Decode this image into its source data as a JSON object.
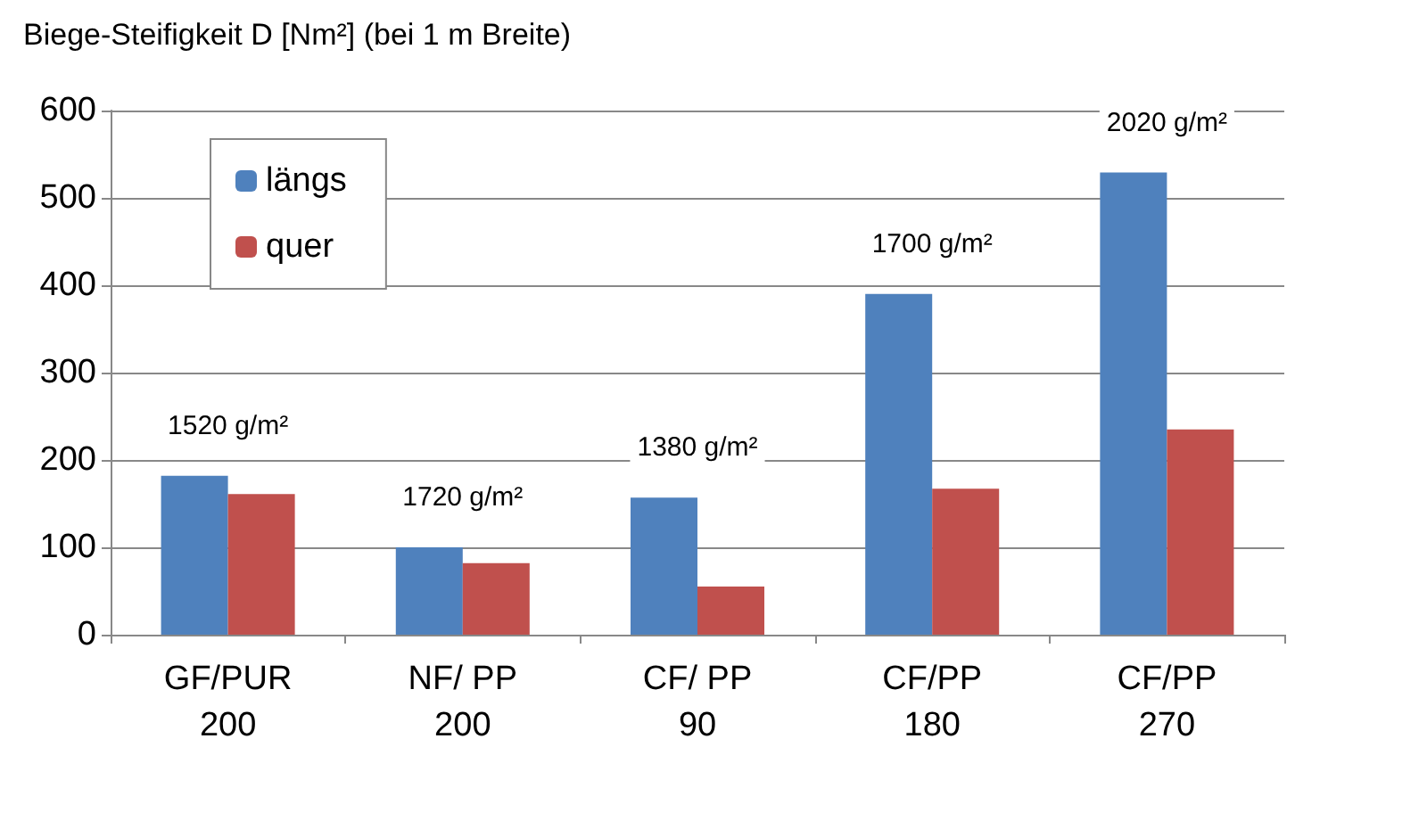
{
  "chart_data": {
    "type": "bar",
    "title": "Biege-Steifigkeit D [Nm²] (bei 1 m Breite)",
    "categories": [
      "GF/PUR\n200",
      "NF/ PP\n200",
      "CF/ PP\n90",
      "CF/PP\n180",
      "CF/PP\n270"
    ],
    "series": [
      {
        "name": "längs",
        "color": "#4f81bd",
        "values": [
          182,
          100,
          157,
          390,
          529
        ]
      },
      {
        "name": "quer",
        "color": "#c0504d",
        "values": [
          161,
          82,
          55,
          167,
          235
        ]
      }
    ],
    "ylim": [
      0,
      600
    ],
    "yticks": [
      0,
      100,
      200,
      300,
      400,
      500,
      600
    ],
    "grid": "y",
    "legend": "top left",
    "annotations": [
      "1520 g/m²",
      "1720 g/m²",
      "1380 g/m²",
      "1700 g/m²",
      "2020 g/m²"
    ]
  }
}
